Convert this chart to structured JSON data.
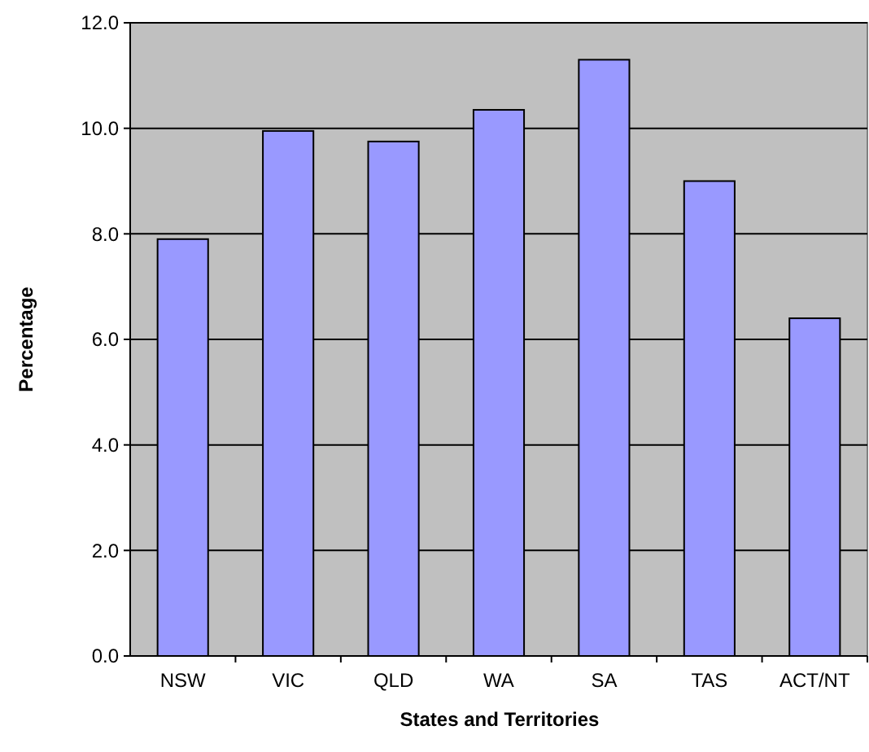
{
  "chart_data": {
    "type": "bar",
    "xlabel": "States and Territories",
    "ylabel": "Percentage",
    "categories": [
      "NSW",
      "VIC",
      "QLD",
      "WA",
      "SA",
      "TAS",
      "ACT/NT"
    ],
    "values": [
      7.9,
      9.95,
      9.75,
      10.35,
      11.3,
      9.0,
      6.4
    ],
    "color": "#9999ff",
    "ylim": [
      0,
      12
    ],
    "yticks": [
      {
        "value": 0,
        "label": "0.0"
      },
      {
        "value": 2,
        "label": "2.0"
      },
      {
        "value": 4,
        "label": "4.0"
      },
      {
        "value": 6,
        "label": "6.0"
      },
      {
        "value": 8,
        "label": "8.0"
      },
      {
        "value": 10,
        "label": "10.0"
      },
      {
        "value": 12,
        "label": "12.0"
      }
    ],
    "grid": "y"
  }
}
